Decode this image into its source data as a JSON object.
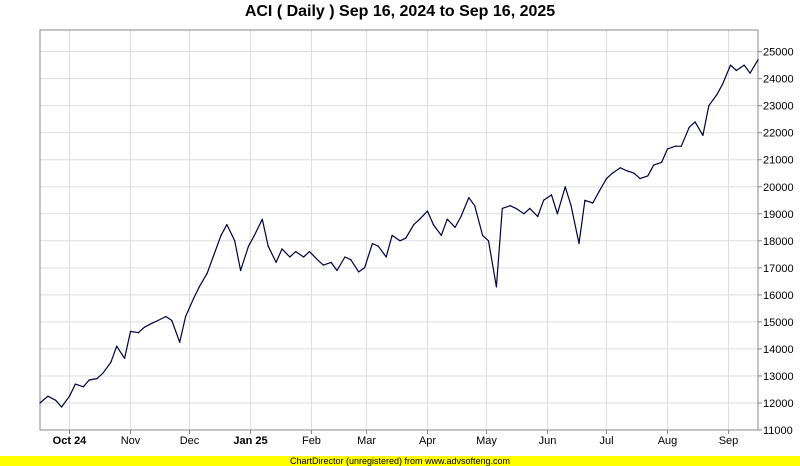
{
  "chart_data": {
    "type": "line",
    "title": "ACI ( Daily ) Sep 16, 2024 to Sep 16, 2025",
    "xlabel": "",
    "ylabel": "",
    "ylim": [
      11000,
      25800
    ],
    "y_ticks": [
      11000,
      12000,
      13000,
      14000,
      15000,
      16000,
      17000,
      18000,
      19000,
      20000,
      21000,
      22000,
      23000,
      24000,
      25000
    ],
    "grid": true,
    "legend": "none",
    "line_color": "#000040",
    "x_ticks": [
      {
        "label": "Oct 24",
        "date": "2024-10-01",
        "bold": true
      },
      {
        "label": "Nov",
        "date": "2024-11-01",
        "bold": false
      },
      {
        "label": "Dec",
        "date": "2024-12-01",
        "bold": false
      },
      {
        "label": "Jan 25",
        "date": "2025-01-01",
        "bold": true
      },
      {
        "label": "Feb",
        "date": "2025-02-01",
        "bold": false
      },
      {
        "label": "Mar",
        "date": "2025-03-01",
        "bold": false
      },
      {
        "label": "Apr",
        "date": "2025-04-01",
        "bold": false
      },
      {
        "label": "May",
        "date": "2025-05-01",
        "bold": false
      },
      {
        "label": "Jun",
        "date": "2025-06-01",
        "bold": false
      },
      {
        "label": "Jul",
        "date": "2025-07-01",
        "bold": false
      },
      {
        "label": "Aug",
        "date": "2025-08-01",
        "bold": false
      },
      {
        "label": "Sep",
        "date": "2025-09-01",
        "bold": false
      }
    ],
    "series": [
      {
        "x": [
          "2024-09-16",
          "2024-09-20",
          "2024-09-24",
          "2024-09-27",
          "2024-10-01",
          "2024-10-04",
          "2024-10-08",
          "2024-10-11",
          "2024-10-15",
          "2024-10-18",
          "2024-10-22",
          "2024-10-25",
          "2024-10-29",
          "2024-11-01",
          "2024-11-05",
          "2024-11-08",
          "2024-11-12",
          "2024-11-15",
          "2024-11-19",
          "2024-11-22",
          "2024-11-26",
          "2024-11-29",
          "2024-12-03",
          "2024-12-06",
          "2024-12-10",
          "2024-12-13",
          "2024-12-17",
          "2024-12-20",
          "2024-12-24",
          "2024-12-27",
          "2024-12-31",
          "2025-01-03",
          "2025-01-07",
          "2025-01-10",
          "2025-01-14",
          "2025-01-17",
          "2025-01-21",
          "2025-01-24",
          "2025-01-28",
          "2025-01-31",
          "2025-02-04",
          "2025-02-07",
          "2025-02-11",
          "2025-02-14",
          "2025-02-18",
          "2025-02-21",
          "2025-02-25",
          "2025-02-28",
          "2025-03-04",
          "2025-03-07",
          "2025-03-11",
          "2025-03-14",
          "2025-03-18",
          "2025-03-21",
          "2025-03-25",
          "2025-03-28",
          "2025-04-01",
          "2025-04-04",
          "2025-04-08",
          "2025-04-11",
          "2025-04-15",
          "2025-04-18",
          "2025-04-22",
          "2025-04-25",
          "2025-04-29",
          "2025-05-02",
          "2025-05-06",
          "2025-05-09",
          "2025-05-13",
          "2025-05-16",
          "2025-05-20",
          "2025-05-23",
          "2025-05-27",
          "2025-05-30",
          "2025-06-03",
          "2025-06-06",
          "2025-06-10",
          "2025-06-13",
          "2025-06-17",
          "2025-06-20",
          "2025-06-24",
          "2025-06-27",
          "2025-07-01",
          "2025-07-04",
          "2025-07-08",
          "2025-07-11",
          "2025-07-15",
          "2025-07-18",
          "2025-07-22",
          "2025-07-25",
          "2025-07-29",
          "2025-08-01",
          "2025-08-05",
          "2025-08-08",
          "2025-08-12",
          "2025-08-15",
          "2025-08-19",
          "2025-08-22",
          "2025-08-26",
          "2025-08-29",
          "2025-09-02",
          "2025-09-05",
          "2025-09-09",
          "2025-09-12",
          "2025-09-16"
        ],
        "values": [
          12000,
          12250,
          12100,
          11850,
          12250,
          12700,
          12600,
          12850,
          12900,
          13100,
          13500,
          14100,
          13650,
          14650,
          14600,
          14800,
          14950,
          15050,
          15200,
          15050,
          14250,
          15200,
          15850,
          16300,
          16800,
          17400,
          18200,
          18600,
          18000,
          16900,
          17800,
          18200,
          18800,
          17800,
          17200,
          17700,
          17400,
          17600,
          17400,
          17600,
          17300,
          17100,
          17200,
          16900,
          17400,
          17300,
          16850,
          17000,
          17900,
          17800,
          17400,
          18200,
          18000,
          18100,
          18600,
          18800,
          19100,
          18600,
          18200,
          18800,
          18500,
          18900,
          19600,
          19300,
          18200,
          18000,
          16300,
          19200,
          19300,
          19200,
          19000,
          19200,
          18900,
          19500,
          19700,
          19000,
          20000,
          19300,
          17900,
          19500,
          19400,
          19800,
          20300,
          20500,
          20700,
          20600,
          20500,
          20300,
          20400,
          20800,
          20900,
          21400,
          21500,
          21500,
          22200,
          22400,
          21900,
          23000,
          23400,
          23800,
          24500,
          24300,
          24500,
          24200,
          24700
        ]
      }
    ]
  },
  "footer": {
    "text": "ChartDirector (unregistered) from www.advsofteng.com"
  }
}
